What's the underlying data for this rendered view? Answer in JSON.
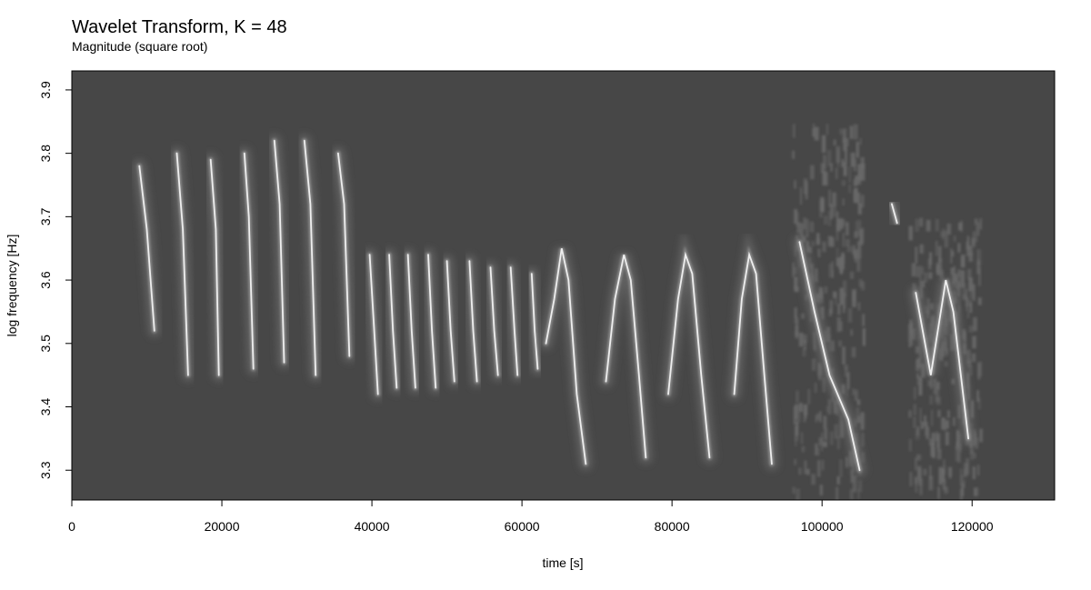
{
  "chart_data": {
    "type": "heatmap",
    "title": "Wavelet Transform, K = 48",
    "subtitle": "Magnitude (square root)",
    "xlabel": "time [s]",
    "ylabel": "log frequency [Hz]",
    "xlim": [
      0,
      131000
    ],
    "ylim": [
      3.253,
      3.93
    ],
    "xticks": [
      "0",
      "20000",
      "40000",
      "60000",
      "80000",
      "100000",
      "120000"
    ],
    "yticks": [
      "3.3",
      "3.4",
      "3.5",
      "3.6",
      "3.7",
      "3.8",
      "3.9"
    ],
    "colors": {
      "background": "#474747",
      "ridge": "#ffffff",
      "noise": "#6a6a6a"
    },
    "ridges": [
      [
        [
          9000,
          3.78
        ],
        [
          10000,
          3.68
        ],
        [
          11000,
          3.52
        ]
      ],
      [
        [
          14000,
          3.8
        ],
        [
          14800,
          3.68
        ],
        [
          15500,
          3.45
        ]
      ],
      [
        [
          18500,
          3.79
        ],
        [
          19200,
          3.68
        ],
        [
          19600,
          3.45
        ]
      ],
      [
        [
          23000,
          3.8
        ],
        [
          23600,
          3.7
        ],
        [
          24200,
          3.46
        ]
      ],
      [
        [
          27000,
          3.82
        ],
        [
          27700,
          3.72
        ],
        [
          28300,
          3.47
        ]
      ],
      [
        [
          31000,
          3.82
        ],
        [
          31800,
          3.72
        ],
        [
          32500,
          3.45
        ]
      ],
      [
        [
          35500,
          3.8
        ],
        [
          36300,
          3.72
        ],
        [
          37000,
          3.48
        ]
      ],
      [
        [
          39700,
          3.64
        ],
        [
          40300,
          3.52
        ],
        [
          40800,
          3.42
        ]
      ],
      [
        [
          42300,
          3.64
        ],
        [
          42800,
          3.52
        ],
        [
          43300,
          3.43
        ]
      ],
      [
        [
          44800,
          3.64
        ],
        [
          45300,
          3.52
        ],
        [
          45800,
          3.43
        ]
      ],
      [
        [
          47500,
          3.64
        ],
        [
          48000,
          3.52
        ],
        [
          48500,
          3.43
        ]
      ],
      [
        [
          50000,
          3.63
        ],
        [
          50500,
          3.52
        ],
        [
          51000,
          3.44
        ]
      ],
      [
        [
          53000,
          3.63
        ],
        [
          53500,
          3.52
        ],
        [
          54000,
          3.44
        ]
      ],
      [
        [
          55800,
          3.62
        ],
        [
          56300,
          3.52
        ],
        [
          56800,
          3.45
        ]
      ],
      [
        [
          58500,
          3.62
        ],
        [
          59000,
          3.52
        ],
        [
          59400,
          3.45
        ]
      ],
      [
        [
          61300,
          3.61
        ],
        [
          61700,
          3.52
        ],
        [
          62100,
          3.46
        ]
      ],
      [
        [
          63200,
          3.5
        ],
        [
          64300,
          3.57
        ],
        [
          65300,
          3.65
        ],
        [
          66200,
          3.6
        ],
        [
          67300,
          3.42
        ],
        [
          68500,
          3.31
        ]
      ],
      [
        [
          71200,
          3.44
        ],
        [
          72400,
          3.57
        ],
        [
          73600,
          3.64
        ],
        [
          74500,
          3.6
        ],
        [
          75600,
          3.45
        ],
        [
          76500,
          3.32
        ]
      ],
      [
        [
          79500,
          3.42
        ],
        [
          80800,
          3.57
        ],
        [
          81800,
          3.64
        ],
        [
          82700,
          3.61
        ],
        [
          83900,
          3.45
        ],
        [
          85000,
          3.32
        ]
      ],
      [
        [
          88300,
          3.42
        ],
        [
          89300,
          3.57
        ],
        [
          90300,
          3.64
        ],
        [
          91200,
          3.61
        ],
        [
          92300,
          3.45
        ],
        [
          93300,
          3.31
        ]
      ],
      [
        [
          97000,
          3.66
        ],
        [
          99000,
          3.55
        ],
        [
          101000,
          3.45
        ],
        [
          103500,
          3.38
        ],
        [
          105000,
          3.3
        ]
      ],
      [
        [
          109300,
          3.72
        ],
        [
          110000,
          3.69
        ]
      ],
      [
        [
          112500,
          3.58
        ],
        [
          114500,
          3.45
        ],
        [
          116500,
          3.6
        ],
        [
          117500,
          3.55
        ],
        [
          119500,
          3.35
        ]
      ]
    ],
    "noise_regions": [
      [
        96000,
        105500,
        3.27,
        3.85
      ],
      [
        111500,
        121000,
        3.27,
        3.7
      ]
    ]
  }
}
